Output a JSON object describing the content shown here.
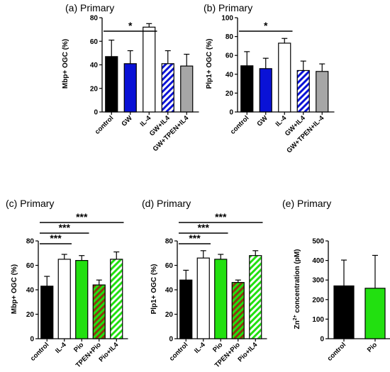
{
  "colors": {
    "black": "#000000",
    "white": "#ffffff",
    "blue": "#0a12d6",
    "gray": "#a6a6a6",
    "green": "#22e010",
    "brown": "#8a3a0f"
  },
  "chart_data": [
    {
      "panel": "a",
      "type": "bar",
      "title": "(a) Primary",
      "ylabel": "Mbp+ OGC (%)",
      "ylim": [
        0,
        80
      ],
      "yticks": [
        0,
        20,
        40,
        60,
        80
      ],
      "categories": [
        "control",
        "GW",
        "IL-4",
        "GW+IL4",
        "GW+TPEN+IL4"
      ],
      "values": [
        47,
        41,
        72,
        41,
        39
      ],
      "errors": [
        14,
        11,
        3,
        11,
        10
      ],
      "fills": [
        "black",
        "blue",
        "white",
        "blue-hatch",
        "gray"
      ],
      "significance": [
        {
          "from": 0,
          "to": 2,
          "label": "*"
        }
      ]
    },
    {
      "panel": "b",
      "type": "bar",
      "title": "(b) Primary",
      "ylabel": "Plp1+ OGC (%)",
      "ylim": [
        0,
        100
      ],
      "yticks": [
        0,
        20,
        40,
        60,
        80,
        100
      ],
      "categories": [
        "control",
        "GW",
        "IL-4",
        "GW+IL4",
        "GW+TPEN+IL-4"
      ],
      "values": [
        49,
        46,
        73,
        44,
        43
      ],
      "errors": [
        15,
        11,
        5,
        10,
        8
      ],
      "fills": [
        "black",
        "blue",
        "white",
        "blue-hatch",
        "gray"
      ],
      "significance": [
        {
          "from": 0,
          "to": 2,
          "label": "*"
        }
      ]
    },
    {
      "panel": "c",
      "type": "bar",
      "title": "(c) Primary",
      "ylabel": "Mbp+ OGC (%)",
      "ylim": [
        0,
        80
      ],
      "yticks": [
        0,
        20,
        40,
        60,
        80
      ],
      "categories": [
        "control",
        "IL-4",
        "Pio",
        "TPEN+Pio",
        "Pio+IL4"
      ],
      "values": [
        43,
        65,
        64,
        44,
        65
      ],
      "errors": [
        8,
        4,
        4,
        4,
        6
      ],
      "fills": [
        "black",
        "white",
        "green",
        "brown-hatch",
        "green-hatch"
      ],
      "significance": [
        {
          "from": 0,
          "to": 1,
          "label": "***"
        },
        {
          "from": 0,
          "to": 2,
          "label": "***"
        },
        {
          "from": 0,
          "to": 4,
          "label": "***"
        }
      ]
    },
    {
      "panel": "d",
      "type": "bar",
      "title": "(d) Primary",
      "ylabel": "Plp1+ OGC (%)",
      "ylim": [
        0,
        80
      ],
      "yticks": [
        0,
        20,
        40,
        60,
        80
      ],
      "categories": [
        "control",
        "IL-4",
        "Pio",
        "TPEN+Pio",
        "Pio+IL4"
      ],
      "values": [
        48,
        66,
        65,
        46,
        68
      ],
      "errors": [
        8,
        6,
        4,
        2,
        4
      ],
      "fills": [
        "black",
        "white",
        "green",
        "brown-hatch",
        "green-hatch"
      ],
      "significance": [
        {
          "from": 0,
          "to": 1,
          "label": "***"
        },
        {
          "from": 0,
          "to": 2,
          "label": "***"
        },
        {
          "from": 0,
          "to": 4,
          "label": "***"
        }
      ]
    },
    {
      "panel": "e",
      "type": "bar",
      "title": "(e) Primary",
      "ylabel_main": "Zn",
      "ylabel_sup": "2+",
      "ylabel_rest": " concentration (pM)",
      "ylim": [
        0,
        500
      ],
      "yticks": [
        0,
        100,
        200,
        300,
        400,
        500
      ],
      "categories": [
        "control",
        "Pio"
      ],
      "values": [
        270,
        258
      ],
      "errors": [
        132,
        168
      ],
      "fills": [
        "black",
        "green"
      ],
      "significance": []
    }
  ]
}
